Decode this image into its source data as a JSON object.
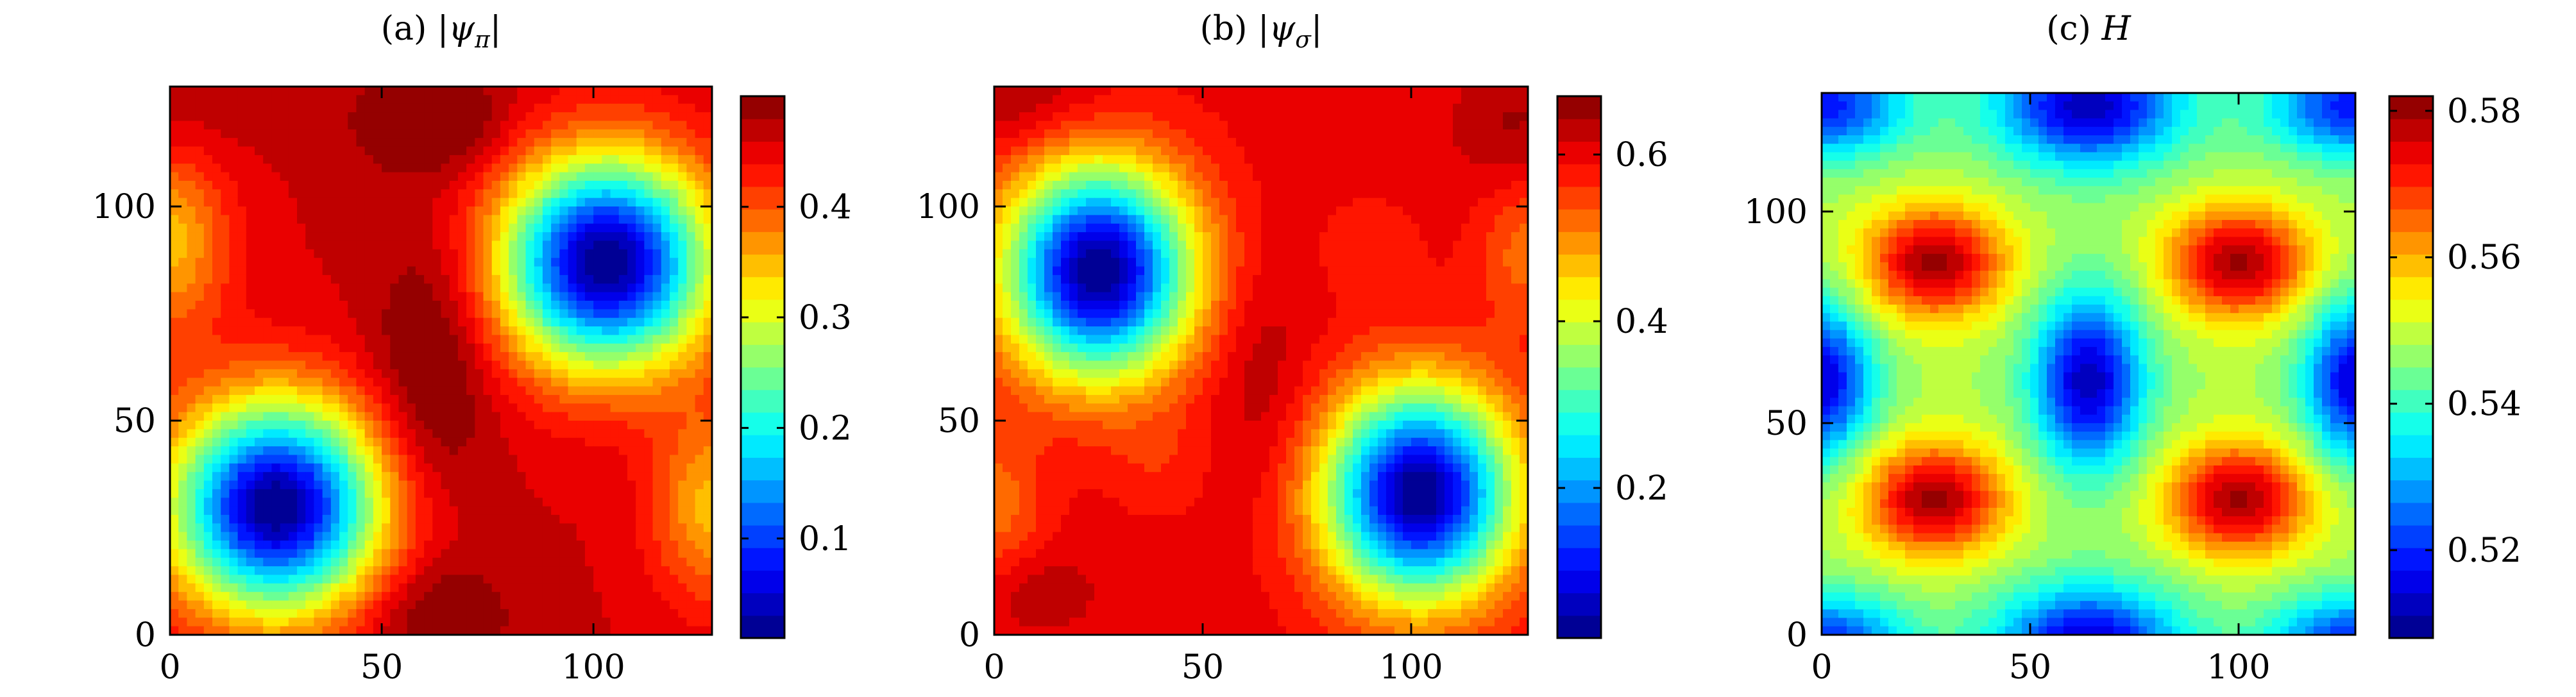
{
  "chart_data": [
    {
      "type": "heatmap",
      "title": "(a) |ψπ|",
      "title_prefix": "(a) ",
      "title_symbol": "ψ",
      "title_subscript": "π",
      "xlim": [
        0,
        128
      ],
      "ylim": [
        0,
        128
      ],
      "x_ticks": [
        0,
        50,
        100
      ],
      "y_ticks": [
        0,
        50,
        100
      ],
      "colorbar": {
        "range": [
          0.01,
          0.5
        ],
        "ticks": [
          0.1,
          0.2,
          0.3,
          0.4
        ],
        "tick_labels": [
          "0.1",
          "0.2",
          "0.3",
          "0.4"
        ]
      },
      "field": {
        "base": 0.46,
        "bumps": [
          {
            "x": 25,
            "y": 30,
            "amp": -0.45,
            "sx": 24,
            "sy": 24
          },
          {
            "x": 103,
            "y": 87,
            "amp": -0.45,
            "sx": 24,
            "sy": 24
          },
          {
            "x": 62,
            "y": 62,
            "amp": 0.06,
            "sx": 14,
            "sy": 32
          },
          {
            "x": 62,
            "y": 120,
            "amp": 0.06,
            "sx": 18,
            "sy": 12
          },
          {
            "x": 62,
            "y": 5,
            "amp": 0.05,
            "sx": 18,
            "sy": 12
          },
          {
            "x": 0,
            "y": 92,
            "amp": -0.11,
            "sx": 14,
            "sy": 22
          },
          {
            "x": 128,
            "y": 30,
            "amp": -0.11,
            "sx": 14,
            "sy": 22
          },
          {
            "x": 0,
            "y": 120,
            "amp": 0.02,
            "sx": 20,
            "sy": 12
          }
        ]
      }
    },
    {
      "type": "heatmap",
      "title": "(b) |ψσ|",
      "title_prefix": "(b) ",
      "title_symbol": "ψ",
      "title_subscript": "σ",
      "xlim": [
        0,
        128
      ],
      "ylim": [
        0,
        128
      ],
      "x_ticks": [
        0,
        50,
        100
      ],
      "y_ticks": [
        0,
        50,
        100
      ],
      "colorbar": {
        "range": [
          0.02,
          0.67
        ],
        "ticks": [
          0.2,
          0.4,
          0.6
        ],
        "tick_labels": [
          "0.2",
          "0.4",
          "0.6"
        ]
      },
      "field": {
        "base": 0.6,
        "bumps": [
          {
            "x": 25,
            "y": 85,
            "amp": -0.58,
            "sx": 22,
            "sy": 24
          },
          {
            "x": 102,
            "y": 33,
            "amp": -0.58,
            "sx": 22,
            "sy": 24
          },
          {
            "x": 64,
            "y": 60,
            "amp": 0.04,
            "sx": 12,
            "sy": 28
          },
          {
            "x": 5,
            "y": 125,
            "amp": 0.05,
            "sx": 22,
            "sy": 12
          },
          {
            "x": 125,
            "y": 118,
            "amp": 0.05,
            "sx": 14,
            "sy": 16
          },
          {
            "x": 10,
            "y": 10,
            "amp": 0.04,
            "sx": 14,
            "sy": 10
          },
          {
            "x": 128,
            "y": 90,
            "amp": -0.08,
            "sx": 12,
            "sy": 18
          },
          {
            "x": 0,
            "y": 30,
            "amp": -0.08,
            "sx": 12,
            "sy": 18
          },
          {
            "x": 40,
            "y": 40,
            "amp": -0.03,
            "sx": 12,
            "sy": 12
          },
          {
            "x": 90,
            "y": 90,
            "amp": -0.03,
            "sx": 12,
            "sy": 12
          }
        ]
      }
    },
    {
      "type": "heatmap",
      "title": "(c) H",
      "title_prefix": "(c) ",
      "title_symbol": "H",
      "title_subscript": "",
      "xlim": [
        0,
        128
      ],
      "ylim": [
        0,
        128
      ],
      "x_ticks": [
        0,
        50,
        100
      ],
      "y_ticks": [
        0,
        50,
        100
      ],
      "colorbar": {
        "range": [
          0.508,
          0.582
        ],
        "ticks": [
          0.52,
          0.54,
          0.56,
          0.58
        ],
        "tick_labels": [
          "0.52",
          "0.54",
          "0.56",
          "0.58"
        ]
      },
      "field": {
        "base": 0.548,
        "bumps": [
          {
            "x": 27,
            "y": 88,
            "amp": 0.032,
            "sx": 17,
            "sy": 13
          },
          {
            "x": 100,
            "y": 88,
            "amp": 0.032,
            "sx": 17,
            "sy": 13
          },
          {
            "x": 27,
            "y": 32,
            "amp": 0.032,
            "sx": 17,
            "sy": 13
          },
          {
            "x": 100,
            "y": 32,
            "amp": 0.032,
            "sx": 17,
            "sy": 13
          },
          {
            "x": 64,
            "y": 60,
            "amp": -0.036,
            "sx": 13,
            "sy": 20
          },
          {
            "x": 64,
            "y": 125,
            "amp": -0.036,
            "sx": 22,
            "sy": 14
          },
          {
            "x": 64,
            "y": -3,
            "amp": -0.036,
            "sx": 22,
            "sy": 14
          },
          {
            "x": 0,
            "y": 60,
            "amp": -0.034,
            "sx": 12,
            "sy": 18
          },
          {
            "x": 128,
            "y": 60,
            "amp": -0.034,
            "sx": 12,
            "sy": 18
          },
          {
            "x": 0,
            "y": 125,
            "amp": -0.03,
            "sx": 20,
            "sy": 12
          },
          {
            "x": 128,
            "y": 125,
            "amp": -0.03,
            "sx": 20,
            "sy": 12
          },
          {
            "x": 0,
            "y": -3,
            "amp": -0.03,
            "sx": 20,
            "sy": 12
          },
          {
            "x": 128,
            "y": -3,
            "amp": -0.03,
            "sx": 20,
            "sy": 12
          }
        ]
      }
    }
  ]
}
